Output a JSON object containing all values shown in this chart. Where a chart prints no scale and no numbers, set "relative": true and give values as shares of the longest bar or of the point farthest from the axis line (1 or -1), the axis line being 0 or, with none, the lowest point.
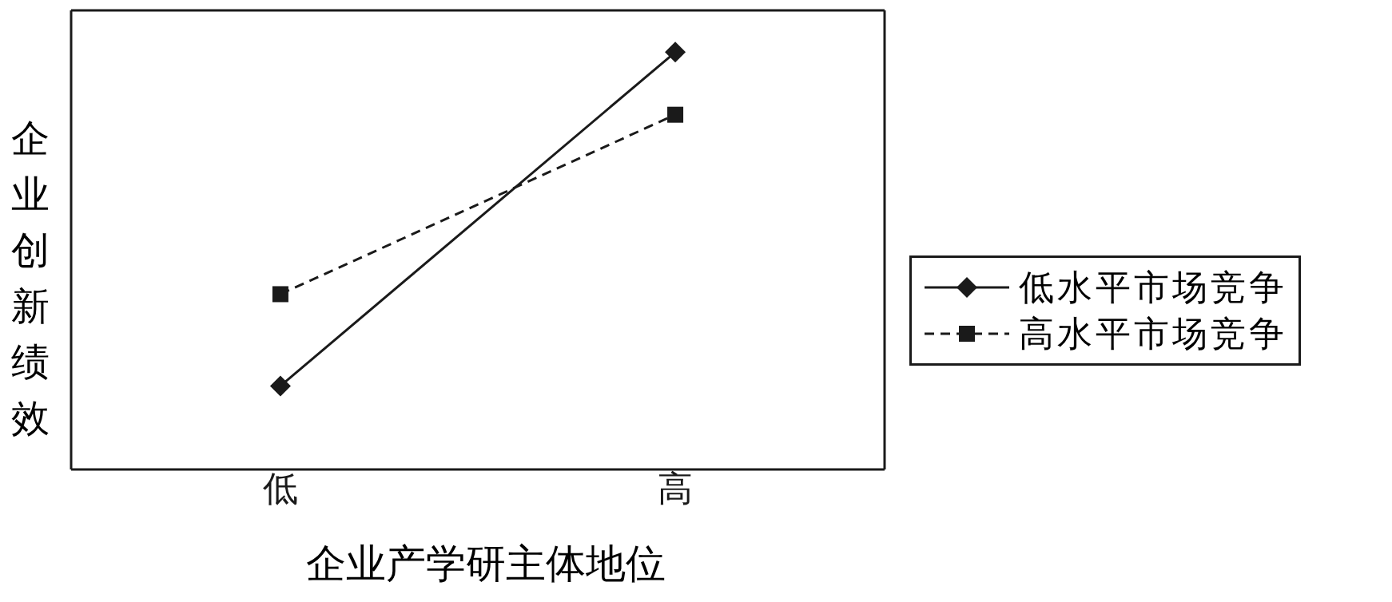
{
  "chart_data": {
    "type": "line",
    "relative": true,
    "xlabel": "企业产学研主体地位",
    "ylabel": "企业创新绩效",
    "categories": [
      "低",
      "高"
    ],
    "legend": "right",
    "grid": false,
    "series": [
      {
        "name": "低水平市场竞争",
        "color": "#1a1a1a",
        "values": [
          0.2,
          1
        ],
        "line_style": "solid",
        "marker": "diamond"
      },
      {
        "name": "高水平市场竞争",
        "color": "#1a1a1a",
        "values": [
          0.42,
          0.85
        ],
        "line_style": "dashed",
        "marker": "square"
      }
    ]
  }
}
